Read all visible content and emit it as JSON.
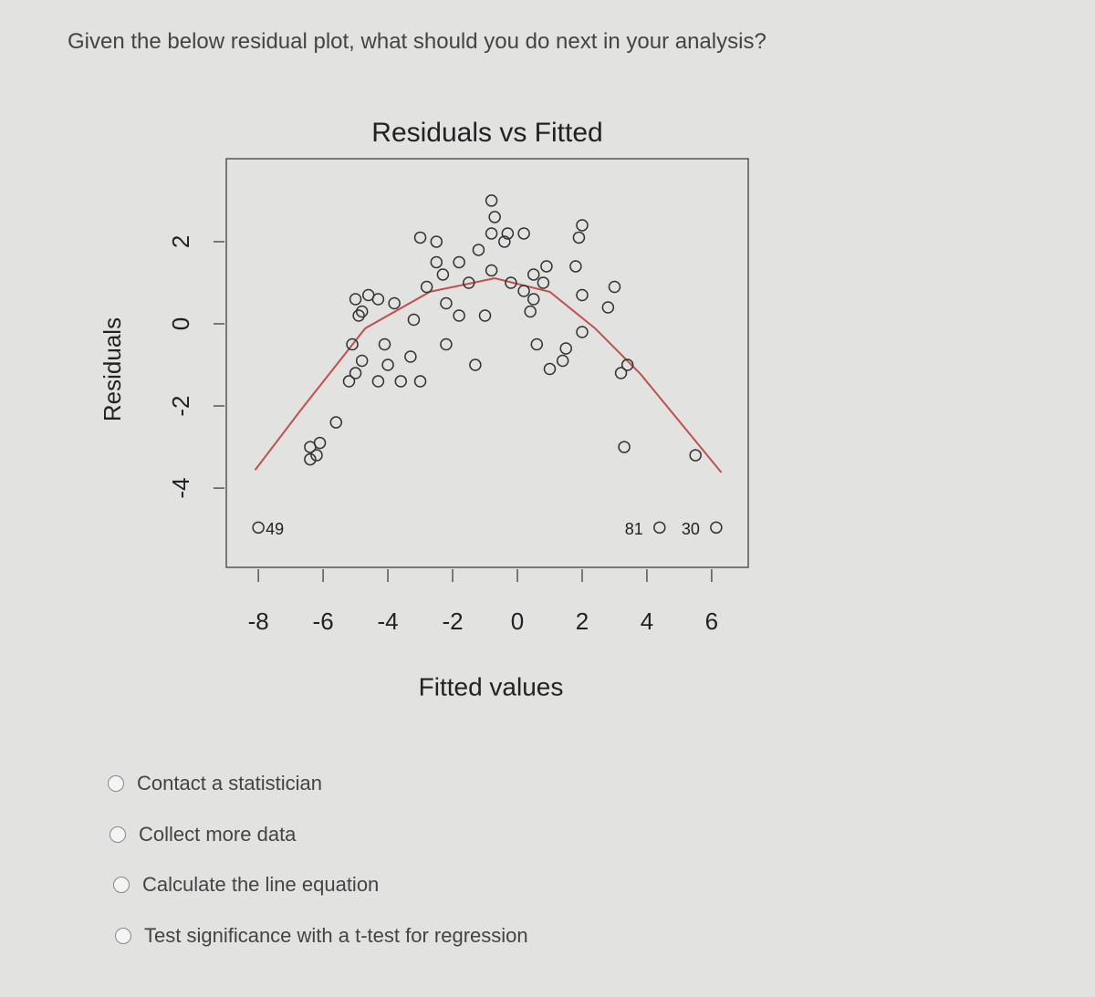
{
  "question": "Given the below residual plot, what should you do next in your analysis?",
  "chart_data": {
    "type": "scatter",
    "title": "Residuals vs Fitted",
    "xlabel": "Fitted values",
    "ylabel": "Residuals",
    "xlim": [
      -8.99,
      7.13
    ],
    "ylim": [
      -5.93,
      4.02
    ],
    "xticks": [
      -8,
      -6,
      -4,
      -2,
      0,
      2,
      4,
      6
    ],
    "yticks": [
      -4,
      -2,
      0,
      2
    ],
    "color": "#333333",
    "x": [
      -6.4,
      -6.4,
      -6.2,
      -6.1,
      -5.6,
      -5.2,
      -5.0,
      -4.8,
      -5.1,
      -4.9,
      -4.8,
      -5.0,
      -4.6,
      -4.3,
      -4.1,
      -4.0,
      -3.6,
      -4.3,
      -3.8,
      -3.3,
      -3.0,
      -3.2,
      -2.8,
      -3.0,
      -2.5,
      -2.5,
      -2.3,
      -2.2,
      -2.2,
      -1.8,
      -1.8,
      -1.5,
      -1.3,
      -1.2,
      -1.0,
      -0.8,
      -0.7,
      -0.8,
      -0.8,
      -0.4,
      -0.3,
      -0.2,
      0.2,
      0.2,
      0.4,
      0.5,
      0.5,
      0.8,
      0.9,
      0.6,
      1.0,
      1.4,
      1.5,
      1.8,
      2.0,
      2.0,
      1.9,
      2.0,
      2.8,
      3.0,
      3.2,
      3.4,
      3.3,
      5.5
    ],
    "y": [
      -3.3,
      -3.0,
      -3.2,
      -2.9,
      -2.4,
      -1.4,
      -1.2,
      -0.9,
      -0.5,
      0.2,
      0.3,
      0.6,
      0.7,
      0.6,
      -0.5,
      -1.0,
      -1.4,
      -1.4,
      0.5,
      -0.8,
      -1.4,
      0.1,
      0.9,
      2.1,
      1.5,
      2.0,
      1.2,
      0.5,
      -0.5,
      0.2,
      1.5,
      1.0,
      -1.0,
      1.8,
      0.2,
      2.2,
      2.6,
      3.0,
      1.3,
      2.0,
      2.2,
      1.0,
      2.2,
      0.8,
      0.3,
      0.6,
      1.2,
      1.0,
      1.4,
      -0.5,
      -1.1,
      -0.9,
      -0.6,
      1.4,
      0.7,
      -0.2,
      2.1,
      2.4,
      0.4,
      0.9,
      -1.2,
      -1.0,
      -3.0,
      -3.2
    ],
    "labeled_points": [
      {
        "x": -8.0,
        "y": -4.96,
        "label": "49"
      },
      {
        "x": 4.39,
        "y": -4.96,
        "label": "81"
      },
      {
        "x": 6.14,
        "y": -4.96,
        "label": "30"
      }
    ],
    "smooth": {
      "color": "#c0504d",
      "x": [
        -8.1,
        -6.7,
        -4.7,
        -2.7,
        -0.7,
        1.0,
        2.4,
        3.8,
        6.3
      ],
      "y": [
        -3.56,
        -2.11,
        -0.11,
        0.78,
        1.11,
        0.78,
        -0.11,
        -1.22,
        -3.62
      ]
    }
  },
  "options": [
    "Contact a statistician",
    "Collect more data",
    "Calculate the line equation",
    "Test significance with a t-test for regression"
  ]
}
